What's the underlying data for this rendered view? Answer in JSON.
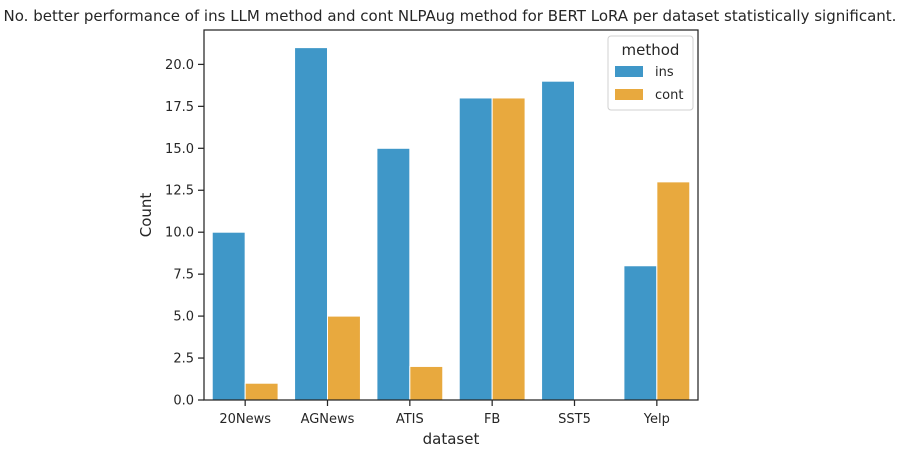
{
  "chart_data": {
    "type": "bar",
    "title": "No. better performance of ins LLM method and cont NLPAug method for BERT LoRA per dataset statistically significant.",
    "xlabel": "dataset",
    "ylabel": "Count",
    "categories": [
      "20News",
      "AGNews",
      "ATIS",
      "FB",
      "SST5",
      "Yelp"
    ],
    "series": [
      {
        "name": "ins",
        "values": [
          10,
          21,
          15,
          18,
          19,
          8
        ],
        "color": "#3f97c8"
      },
      {
        "name": "cont",
        "values": [
          1,
          5,
          2,
          18,
          0,
          13
        ],
        "color": "#e8a93e"
      }
    ],
    "ylim": [
      0,
      22.05
    ],
    "yticks": [
      0,
      2.5,
      5,
      7.5,
      10,
      12.5,
      15,
      17.5,
      20
    ],
    "ytick_labels": [
      "0.0",
      "2.5",
      "5.0",
      "7.5",
      "10.0",
      "12.5",
      "15.0",
      "17.5",
      "20.0"
    ],
    "grid": false,
    "legend": {
      "title": "method",
      "placement": "top-right"
    }
  }
}
